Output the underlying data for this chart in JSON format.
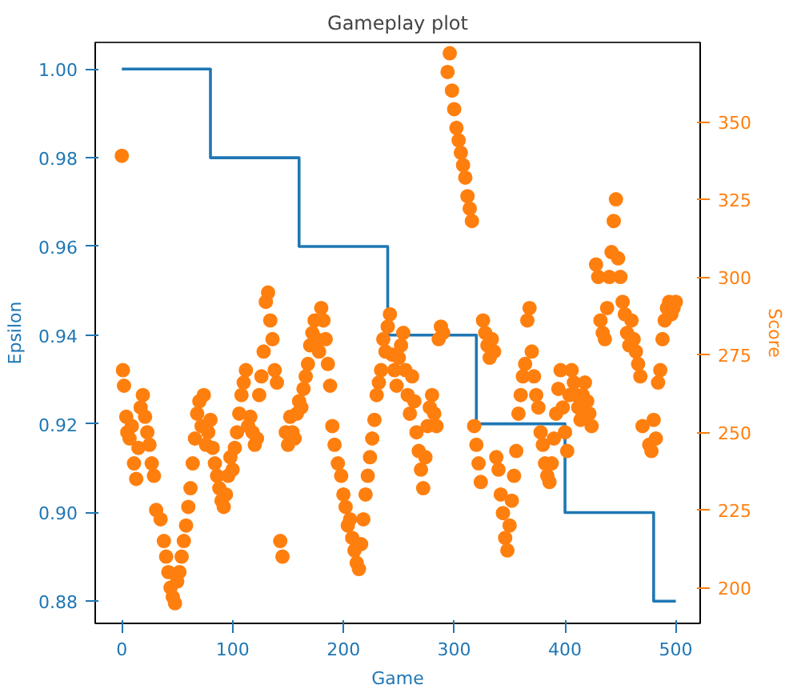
{
  "chart_data": {
    "type": "step",
    "title": "Gameplay plot",
    "xlabel": "Game",
    "xlim": [
      -24,
      522
    ],
    "xticks": [
      0,
      100,
      200,
      300,
      400,
      500
    ],
    "ylim": [
      0.875,
      1.006
    ],
    "yticks": [
      0.88,
      {
        "value": 0.9,
        "label": "0.90"
      },
      0.92,
      0.94,
      0.96,
      0.98,
      {
        "value": 1.0,
        "label": "1.00"
      }
    ],
    "y2lim": [
      188.5,
      375.5
    ],
    "y2ticks": [
      200,
      225,
      250,
      275,
      300,
      325,
      350
    ],
    "grid": false,
    "series": [
      {
        "name": "Epsilon",
        "color": "#1f77b4",
        "marker": "none",
        "x": [
          0,
          80,
          160,
          240,
          320,
          400,
          480,
          500
        ],
        "values": [
          1.0,
          0.98,
          0.96,
          0.94,
          0.92,
          0.9,
          0.88,
          0.88
        ]
      },
      {
        "name": "Score",
        "type": "scatter",
        "axis": "y2",
        "color": "#ff7f0e",
        "marker": "circle",
        "x": [
          0,
          1,
          2,
          4,
          5,
          7,
          9,
          11,
          13,
          15,
          17,
          19,
          21,
          23,
          25,
          27,
          29,
          31,
          35,
          38,
          40,
          42,
          44,
          46,
          48,
          50,
          52,
          54,
          56,
          58,
          60,
          62,
          64,
          66,
          68,
          70,
          72,
          74,
          76,
          78,
          80,
          82,
          84,
          86,
          88,
          90,
          92,
          94,
          96,
          98,
          100,
          102,
          104,
          106,
          108,
          110,
          112,
          114,
          116,
          118,
          120,
          122,
          124,
          126,
          128,
          130,
          132,
          134,
          136,
          138,
          140,
          143,
          145,
          148,
          150,
          152,
          154,
          156,
          158,
          160,
          162,
          164,
          166,
          168,
          170,
          172,
          174,
          176,
          178,
          180,
          182,
          184,
          186,
          188,
          190,
          192,
          195,
          198,
          200,
          202,
          204,
          206,
          208,
          210,
          212,
          214,
          216,
          218,
          220,
          222,
          224,
          226,
          228,
          230,
          232,
          234,
          236,
          238,
          240,
          242,
          244,
          246,
          248,
          250,
          252,
          254,
          256,
          258,
          260,
          262,
          264,
          266,
          268,
          270,
          272,
          274,
          276,
          278,
          280,
          282,
          284,
          286,
          288,
          290,
          294,
          296,
          298,
          300,
          302,
          304,
          306,
          308,
          310,
          312,
          314,
          316,
          318,
          320,
          322,
          324,
          326,
          328,
          330,
          332,
          334,
          336,
          338,
          340,
          342,
          344,
          346,
          348,
          350,
          352,
          354,
          356,
          358,
          360,
          362,
          364,
          366,
          368,
          370,
          372,
          374,
          376,
          378,
          380,
          382,
          384,
          386,
          388,
          390,
          392,
          394,
          396,
          398,
          400,
          402,
          404,
          406,
          408,
          410,
          412,
          414,
          416,
          418,
          420,
          422,
          424,
          428,
          430,
          432,
          434,
          436,
          438,
          440,
          442,
          444,
          446,
          448,
          450,
          452,
          454,
          456,
          458,
          460,
          462,
          464,
          466,
          468,
          470,
          476,
          478,
          480,
          482,
          484,
          486,
          488,
          490,
          492,
          494,
          496,
          498,
          500
        ],
        "values": [
          339,
          270,
          265,
          255,
          250,
          248,
          252,
          240,
          235,
          245,
          258,
          262,
          255,
          250,
          246,
          240,
          236,
          225,
          222,
          215,
          210,
          205,
          200,
          197,
          195,
          202,
          205,
          210,
          215,
          220,
          226,
          232,
          240,
          248,
          256,
          260,
          252,
          262,
          246,
          250,
          254,
          245,
          240,
          236,
          232,
          228,
          226,
          230,
          236,
          242,
          238,
          245,
          250,
          256,
          262,
          266,
          270,
          252,
          255,
          250,
          246,
          248,
          262,
          268,
          276,
          292,
          295,
          286,
          280,
          270,
          266,
          215,
          210,
          250,
          246,
          255,
          250,
          248,
          256,
          260,
          258,
          264,
          268,
          272,
          278,
          282,
          286,
          280,
          276,
          290,
          286,
          280,
          272,
          265,
          252,
          246,
          240,
          236,
          230,
          226,
          220,
          222,
          216,
          212,
          208,
          206,
          214,
          222,
          230,
          236,
          242,
          248,
          254,
          262,
          266,
          270,
          280,
          276,
          284,
          288,
          275,
          270,
          265,
          274,
          278,
          282,
          270,
          262,
          256,
          268,
          260,
          250,
          244,
          238,
          232,
          242,
          252,
          258,
          262,
          256,
          252,
          280,
          284,
          282,
          366,
          372,
          360,
          354,
          348,
          344,
          340,
          336,
          332,
          326,
          322,
          318,
          252,
          246,
          240,
          234,
          286,
          282,
          278,
          274,
          280,
          276,
          242,
          238,
          230,
          224,
          216,
          212,
          220,
          228,
          236,
          244,
          256,
          262,
          268,
          272,
          286,
          290,
          276,
          268,
          262,
          258,
          250,
          246,
          240,
          236,
          234,
          240,
          248,
          256,
          264,
          270,
          258,
          250,
          244,
          262,
          270,
          266,
          262,
          258,
          254,
          262,
          266,
          260,
          256,
          252,
          304,
          300,
          286,
          282,
          280,
          290,
          300,
          308,
          318,
          325,
          306,
          300,
          292,
          288,
          282,
          278,
          286,
          280,
          276,
          272,
          268,
          252,
          246,
          244,
          254,
          248,
          266,
          270,
          280,
          286,
          290,
          292,
          288,
          290,
          292
        ]
      }
    ]
  }
}
